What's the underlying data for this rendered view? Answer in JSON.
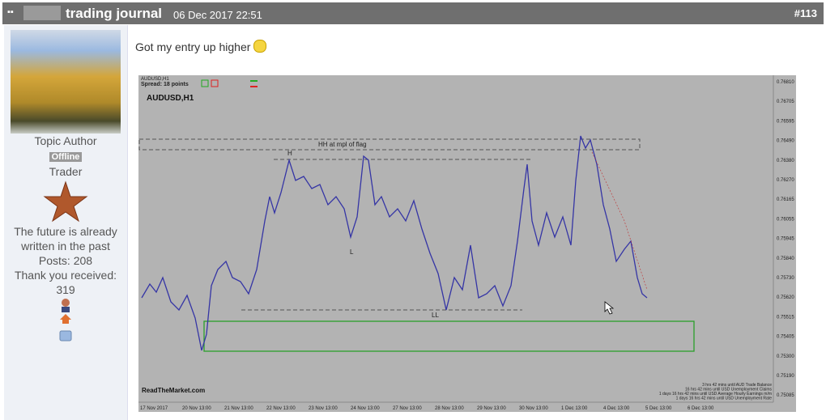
{
  "header": {
    "title": "trading journal",
    "date": "06 Dec 2017 22:51",
    "post_number": "#113"
  },
  "author": {
    "role": "Topic Author",
    "status": "Offline",
    "rank": "Trader",
    "signature": "The future is already written in the past",
    "posts": "Posts: 208",
    "thanks_label": "Thank you received:",
    "thanks": "319"
  },
  "post": {
    "text": "Got my entry up higher"
  },
  "chart_image": {
    "symbol_small": "AUDUSD,H1",
    "spread": "Spread: 18 points",
    "symbol": "AUDUSD,H1",
    "annotation_flag": "HH at mpl of flag",
    "label_h": "H",
    "label_l": "L",
    "label_ll": "LL",
    "watermark": "ReadTheMarket.com",
    "price_labels": [
      "0.76810",
      "0.76705",
      "0.76595",
      "0.76490",
      "0.76380",
      "0.76270",
      "0.76165",
      "0.76055",
      "0.75945",
      "0.75840",
      "0.75730",
      "0.75620",
      "0.75515",
      "0.75405",
      "0.75300",
      "0.75190",
      "0.75085"
    ],
    "date_labels": [
      "17 Nov 2017",
      "20 Nov 13:00",
      "21 Nov 13:00",
      "22 Nov 13:00",
      "23 Nov 13:00",
      "24 Nov 13:00",
      "27 Nov 13:00",
      "28 Nov 13:00",
      "29 Nov 13:00",
      "30 Nov 13:00",
      "1 Dec 13:00",
      "4 Dec 13:00",
      "5 Dec 13:00",
      "6 Dec 13:00"
    ],
    "news": [
      "3 hrs 42 mins until AUD Trade Balance",
      "16 hrs 42 mins until USD Unemployment Claims",
      "1 days 16 hrs 42 mins until USD Average Hourly Earnings m/m",
      "1 days 16 hrs 42 mins until USD Unemployment Rate"
    ]
  }
}
